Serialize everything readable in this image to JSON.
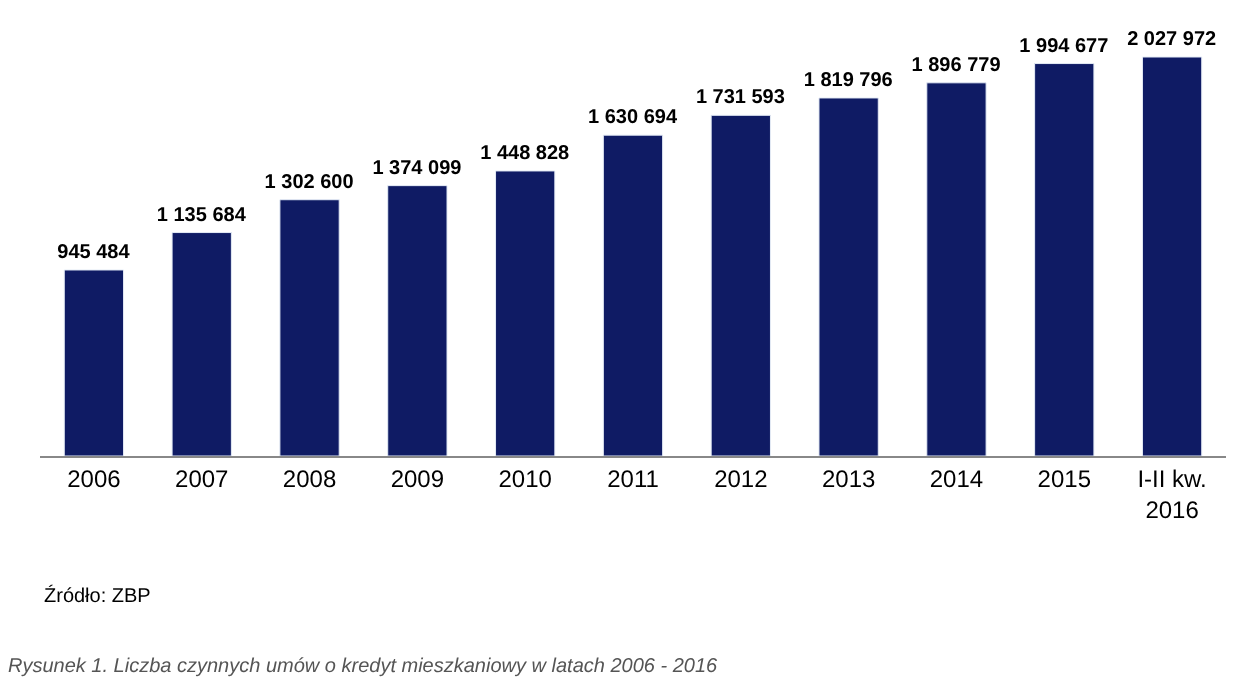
{
  "chart_data": {
    "type": "bar",
    "categories": [
      "2006",
      "2007",
      "2008",
      "2009",
      "2010",
      "2011",
      "2012",
      "2013",
      "2014",
      "2015",
      "I-II kw.\n2016"
    ],
    "values": [
      945484,
      1135684,
      1302600,
      1374099,
      1448828,
      1630694,
      1731593,
      1819796,
      1896779,
      1994677,
      2027972
    ],
    "value_labels": [
      "945 484",
      "1 135 684",
      "1 302 600",
      "1 374 099",
      "1 448 828",
      "1 630 694",
      "1 731 593",
      "1 819 796",
      "1 896 779",
      "1 994 677",
      "2 027 972"
    ],
    "color": "#0f1b64",
    "legend": false,
    "annotations": [
      "Źródło: ZBP",
      "Rysunek 1. Liczba czynnych umów o kredyt mieszkaniowy w latach 2006 - 2016"
    ]
  }
}
